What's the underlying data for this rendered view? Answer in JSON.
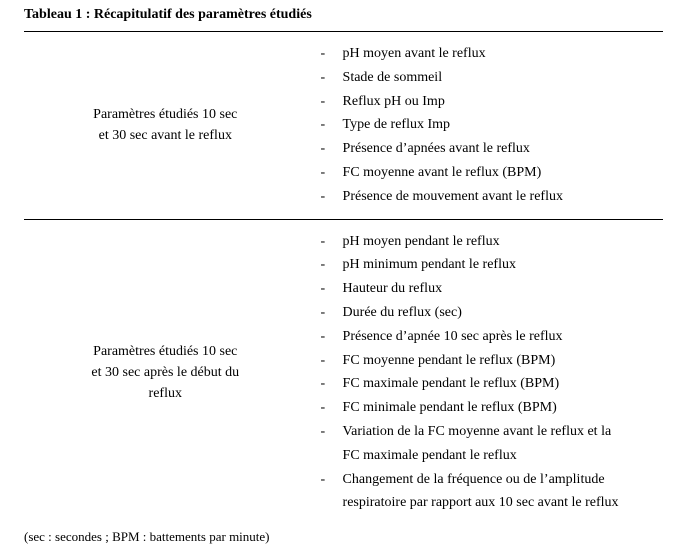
{
  "title": "Tableau 1 : Récapitulatif des paramètres étudiés",
  "rows": [
    {
      "left": {
        "line1": "Paramètres étudiés 10 sec",
        "line2": "et 30 sec avant le reflux",
        "line3": ""
      },
      "items": [
        "pH moyen avant le reflux",
        "Stade de sommeil",
        "Reflux pH ou Imp",
        "Type de reflux Imp",
        "Présence d’apnées avant le reflux",
        "FC moyenne avant le reflux (BPM)",
        "Présence de mouvement avant le reflux"
      ]
    },
    {
      "left": {
        "line1": "Paramètres étudiés 10 sec",
        "line2": "et 30 sec après le début du",
        "line3": "reflux"
      },
      "items": [
        "pH moyen pendant le reflux",
        "pH minimum pendant le reflux",
        "Hauteur du reflux",
        "Durée du reflux (sec)",
        "Présence d’apnée 10 sec après le reflux",
        "FC moyenne pendant le reflux (BPM)",
        "FC maximale pendant le reflux (BPM)",
        "FC minimale pendant le reflux (BPM)",
        "Variation de la FC moyenne avant le reflux et la",
        "FC maximale pendant le reflux",
        "Changement de la fréquence ou de l’amplitude",
        "respiratoire par rapport aux 10 sec avant le reflux"
      ],
      "subIdx": [
        9,
        11
      ]
    }
  ],
  "footnote": "(sec : secondes ; BPM : battements par minute)"
}
